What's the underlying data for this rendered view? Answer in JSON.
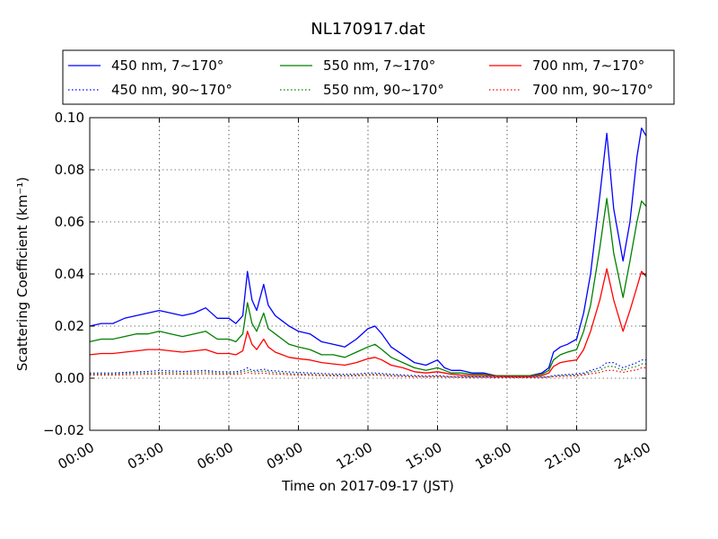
{
  "chart_data": {
    "type": "line",
    "title": "NL170917.dat",
    "xlabel": "Time on 2017-09-17 (JST)",
    "ylabel": "Scattering Coefficient (km⁻¹)",
    "xlim": [
      "00:00",
      "24:00"
    ],
    "ylim": [
      -0.02,
      0.1
    ],
    "x_ticks": [
      "00:00",
      "03:00",
      "06:00",
      "09:00",
      "12:00",
      "15:00",
      "18:00",
      "21:00",
      "24:00"
    ],
    "y_ticks": [
      "−0.02",
      "0.00",
      "0.02",
      "0.04",
      "0.06",
      "0.08",
      "0.10"
    ],
    "grid": true,
    "legend_position": "top, above plot, 3 columns",
    "x_hours": [
      0.0,
      0.5,
      1.0,
      1.5,
      2.0,
      2.5,
      3.0,
      3.5,
      4.0,
      4.5,
      5.0,
      5.5,
      6.0,
      6.3,
      6.6,
      6.8,
      7.0,
      7.2,
      7.5,
      7.7,
      8.0,
      8.3,
      8.6,
      9.0,
      9.5,
      10.0,
      10.5,
      11.0,
      11.5,
      12.0,
      12.3,
      12.6,
      13.0,
      13.5,
      14.0,
      14.5,
      15.0,
      15.3,
      15.6,
      16.0,
      16.5,
      17.0,
      17.5,
      18.0,
      18.5,
      19.0,
      19.5,
      19.8,
      20.0,
      20.3,
      20.6,
      21.0,
      21.3,
      21.6,
      22.0,
      22.3,
      22.6,
      23.0,
      23.3,
      23.6,
      23.8,
      24.0
    ],
    "series": [
      {
        "name": "450 nm, 7∼170°",
        "color": "#0000ff",
        "style": "solid",
        "values": [
          0.02,
          0.021,
          0.021,
          0.023,
          0.024,
          0.025,
          0.026,
          0.025,
          0.024,
          0.025,
          0.027,
          0.023,
          0.023,
          0.021,
          0.024,
          0.041,
          0.03,
          0.026,
          0.036,
          0.028,
          0.024,
          0.022,
          0.02,
          0.018,
          0.017,
          0.014,
          0.013,
          0.012,
          0.015,
          0.019,
          0.02,
          0.017,
          0.012,
          0.009,
          0.006,
          0.005,
          0.007,
          0.004,
          0.003,
          0.003,
          0.002,
          0.002,
          0.001,
          0.001,
          0.001,
          0.001,
          0.002,
          0.004,
          0.01,
          0.012,
          0.013,
          0.015,
          0.025,
          0.04,
          0.07,
          0.094,
          0.065,
          0.045,
          0.06,
          0.085,
          0.096,
          0.093
        ]
      },
      {
        "name": "450 nm, 90∼170°",
        "color": "#0000ff",
        "style": "dotted",
        "values": [
          0.002,
          0.002,
          0.002,
          0.0022,
          0.0024,
          0.0026,
          0.003,
          0.0028,
          0.0026,
          0.0028,
          0.003,
          0.0025,
          0.0025,
          0.0025,
          0.003,
          0.004,
          0.003,
          0.003,
          0.0035,
          0.003,
          0.0028,
          0.0026,
          0.0024,
          0.0022,
          0.002,
          0.0018,
          0.0016,
          0.0015,
          0.0016,
          0.002,
          0.002,
          0.0018,
          0.0015,
          0.0012,
          0.001,
          0.0008,
          0.001,
          0.0008,
          0.0006,
          0.0006,
          0.0005,
          0.0005,
          0.0004,
          0.0004,
          0.0004,
          0.0004,
          0.0004,
          0.0006,
          0.001,
          0.0012,
          0.0014,
          0.0016,
          0.002,
          0.003,
          0.004,
          0.006,
          0.006,
          0.004,
          0.005,
          0.006,
          0.007,
          0.007
        ]
      },
      {
        "name": "550 nm, 7∼170°",
        "color": "#008000",
        "style": "solid",
        "values": [
          0.014,
          0.015,
          0.015,
          0.016,
          0.017,
          0.017,
          0.018,
          0.017,
          0.016,
          0.017,
          0.018,
          0.015,
          0.015,
          0.014,
          0.017,
          0.029,
          0.021,
          0.018,
          0.025,
          0.019,
          0.017,
          0.015,
          0.013,
          0.012,
          0.011,
          0.009,
          0.009,
          0.008,
          0.01,
          0.012,
          0.013,
          0.011,
          0.008,
          0.006,
          0.004,
          0.003,
          0.004,
          0.003,
          0.002,
          0.002,
          0.0015,
          0.0015,
          0.001,
          0.001,
          0.001,
          0.001,
          0.0015,
          0.003,
          0.007,
          0.009,
          0.01,
          0.011,
          0.018,
          0.028,
          0.05,
          0.069,
          0.048,
          0.031,
          0.045,
          0.06,
          0.068,
          0.066
        ]
      },
      {
        "name": "550 nm, 90∼170°",
        "color": "#008000",
        "style": "dotted",
        "values": [
          0.0016,
          0.0016,
          0.0016,
          0.0018,
          0.002,
          0.002,
          0.0022,
          0.0022,
          0.002,
          0.0022,
          0.0024,
          0.002,
          0.002,
          0.002,
          0.0024,
          0.003,
          0.0025,
          0.0024,
          0.0028,
          0.0024,
          0.0022,
          0.002,
          0.0018,
          0.0016,
          0.0015,
          0.0013,
          0.0012,
          0.0011,
          0.0012,
          0.0015,
          0.0016,
          0.0014,
          0.0011,
          0.0009,
          0.0007,
          0.0006,
          0.0008,
          0.0006,
          0.0005,
          0.0005,
          0.0004,
          0.0004,
          0.0003,
          0.0003,
          0.0003,
          0.0003,
          0.0003,
          0.0005,
          0.0008,
          0.001,
          0.0011,
          0.0012,
          0.0016,
          0.0024,
          0.003,
          0.0045,
          0.0045,
          0.003,
          0.004,
          0.0045,
          0.0055,
          0.0055
        ]
      },
      {
        "name": "700 nm, 7∼170°",
        "color": "#ff0000",
        "style": "solid",
        "values": [
          0.009,
          0.0095,
          0.0095,
          0.01,
          0.0105,
          0.011,
          0.011,
          0.0105,
          0.01,
          0.0105,
          0.011,
          0.0095,
          0.0095,
          0.009,
          0.0105,
          0.018,
          0.013,
          0.011,
          0.015,
          0.012,
          0.01,
          0.009,
          0.008,
          0.0075,
          0.007,
          0.006,
          0.0055,
          0.005,
          0.006,
          0.0075,
          0.008,
          0.007,
          0.005,
          0.004,
          0.0025,
          0.002,
          0.0025,
          0.002,
          0.0015,
          0.0012,
          0.001,
          0.001,
          0.0008,
          0.0007,
          0.0007,
          0.0007,
          0.001,
          0.002,
          0.0045,
          0.006,
          0.0065,
          0.007,
          0.011,
          0.018,
          0.03,
          0.042,
          0.03,
          0.018,
          0.026,
          0.035,
          0.041,
          0.039
        ]
      },
      {
        "name": "700 nm, 90∼170°",
        "color": "#ff0000",
        "style": "dotted",
        "values": [
          0.0012,
          0.0012,
          0.0012,
          0.0013,
          0.0014,
          0.0015,
          0.0016,
          0.0016,
          0.0015,
          0.0016,
          0.0017,
          0.0015,
          0.0015,
          0.0015,
          0.0017,
          0.0022,
          0.0018,
          0.0017,
          0.002,
          0.0017,
          0.0016,
          0.0015,
          0.0013,
          0.0012,
          0.0011,
          0.001,
          0.0009,
          0.0008,
          0.0009,
          0.0011,
          0.0012,
          0.001,
          0.0008,
          0.0007,
          0.0005,
          0.0004,
          0.0006,
          0.0004,
          0.0004,
          0.0003,
          0.0003,
          0.0003,
          0.0002,
          0.0002,
          0.0002,
          0.0002,
          0.0002,
          0.0004,
          0.0006,
          0.0007,
          0.0008,
          0.0009,
          0.0012,
          0.0017,
          0.0022,
          0.003,
          0.003,
          0.0022,
          0.0028,
          0.0032,
          0.004,
          0.004
        ]
      }
    ]
  }
}
